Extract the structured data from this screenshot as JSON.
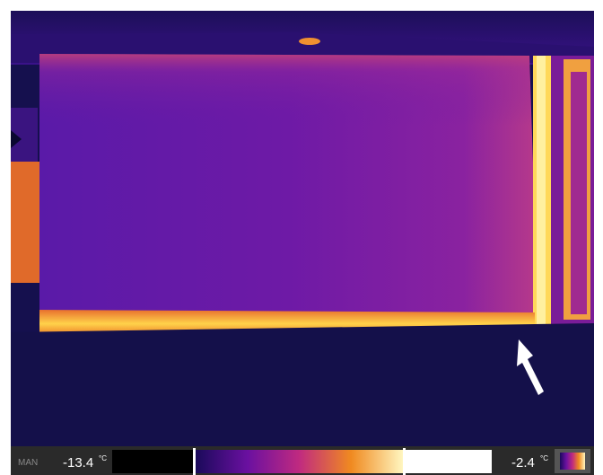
{
  "mode": "MAN",
  "scale": {
    "min_value": "-13.4",
    "max_value": "-2.4",
    "unit": "°C"
  }
}
